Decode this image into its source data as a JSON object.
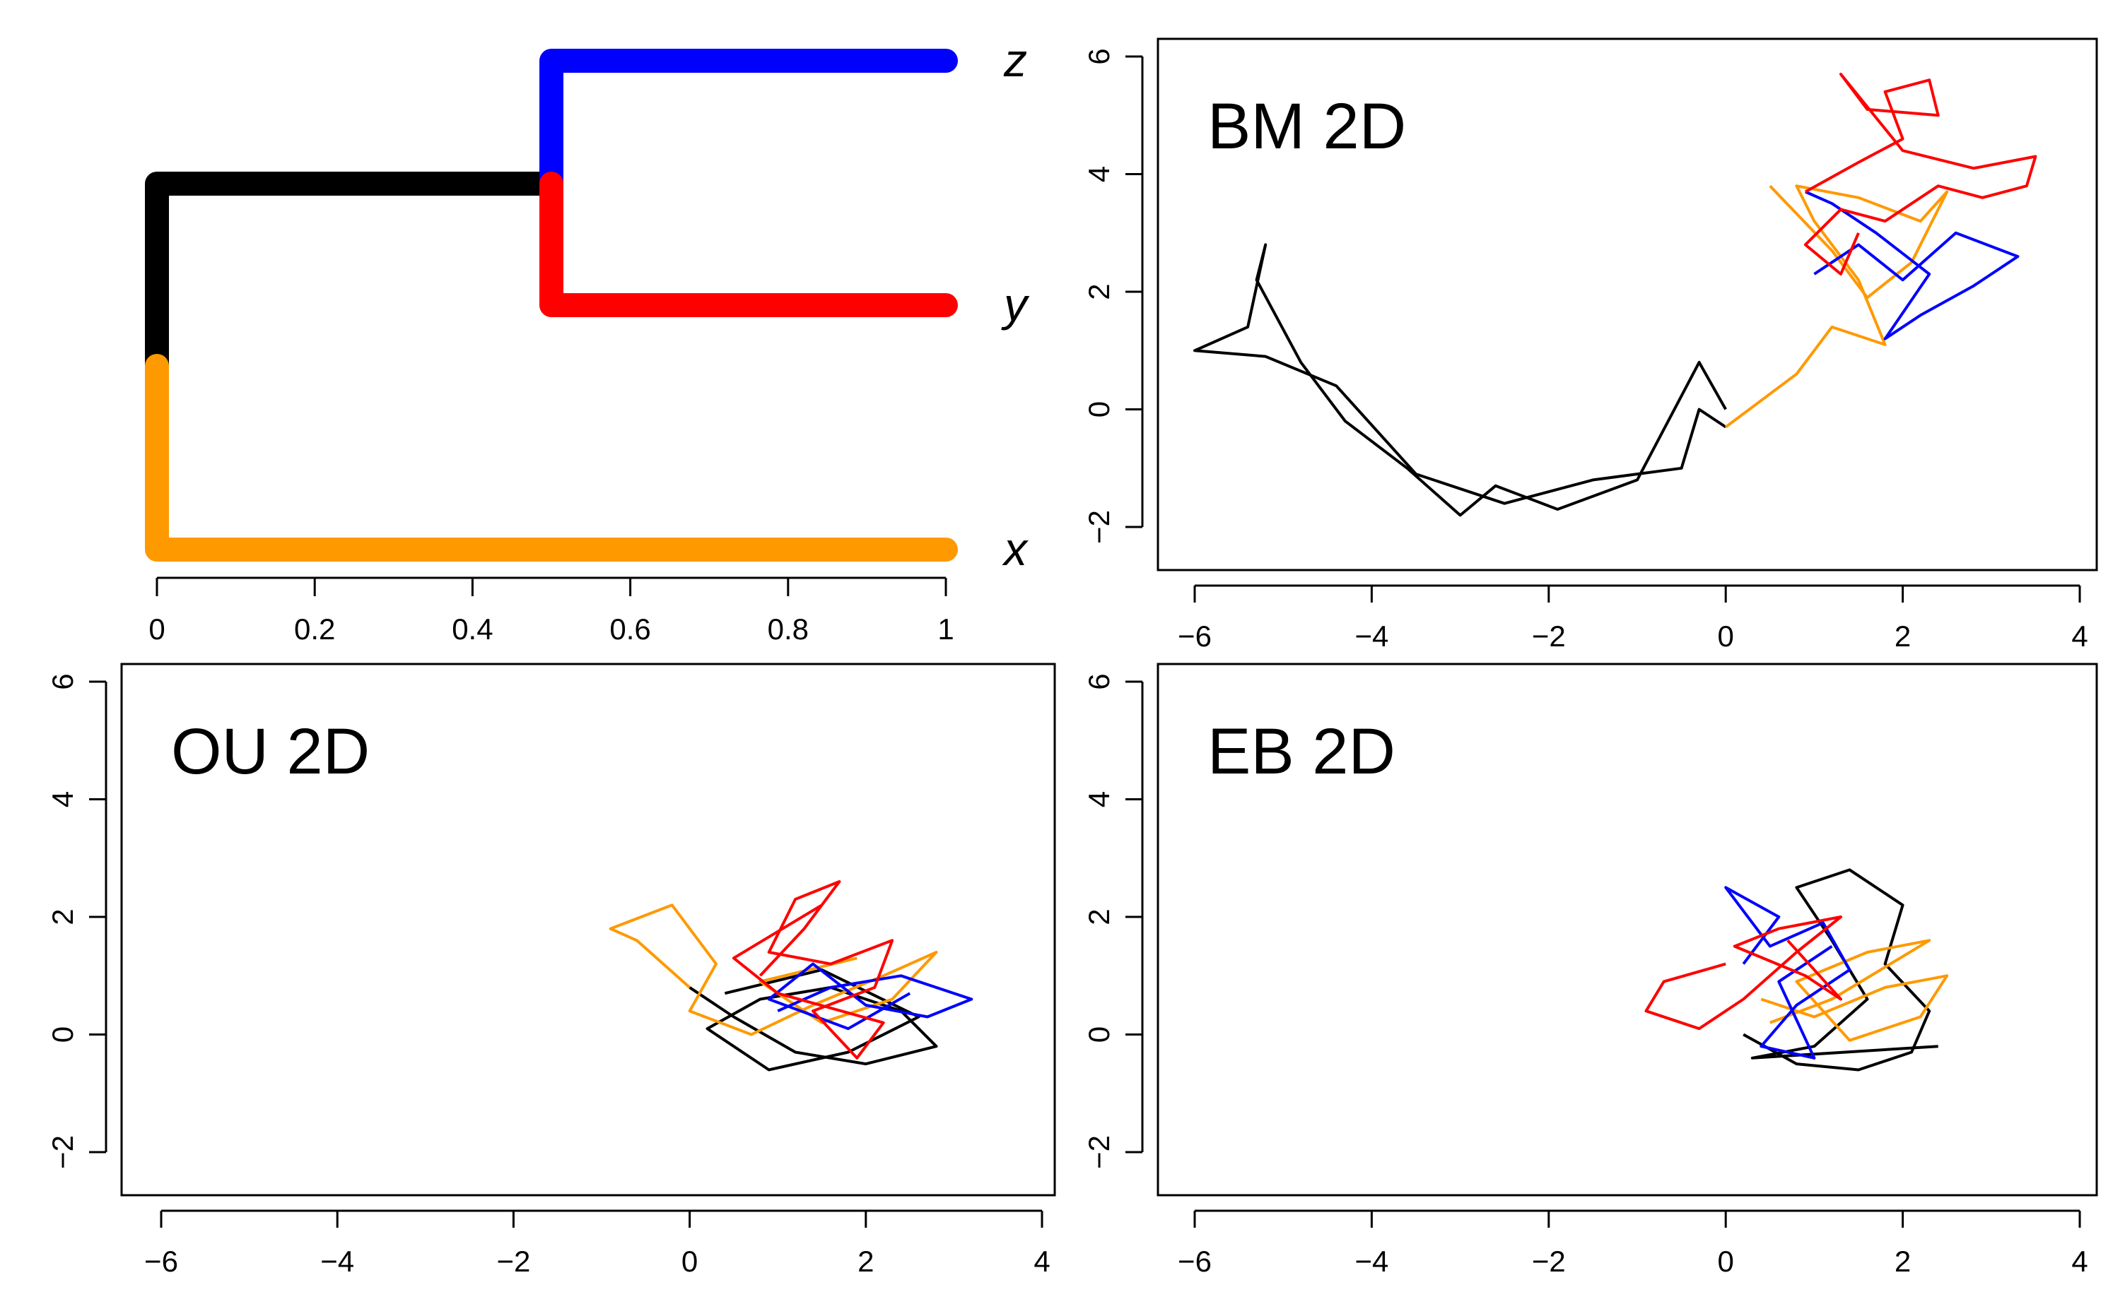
{
  "figure": {
    "panels": [
      "tree",
      "BM 2D",
      "OU 2D",
      "EB 2D"
    ]
  },
  "chart_data": [
    {
      "type": "line",
      "panel": "tree",
      "title": "",
      "xlabel": "",
      "ylabel": "",
      "xlim": [
        0,
        1
      ],
      "x_ticks": [
        0,
        0.2,
        0.4,
        0.6,
        0.8,
        1
      ],
      "x_tick_labels": [
        "0",
        "0.2",
        "0.4",
        "0.6",
        "0.8",
        "1"
      ],
      "tips": [
        "z",
        "y",
        "x"
      ],
      "branches": [
        {
          "from": "root",
          "to": "inner",
          "color": "#000000",
          "length": 0.5
        },
        {
          "from": "inner",
          "to": "z",
          "color": "#0000ff",
          "length": 0.5
        },
        {
          "from": "inner",
          "to": "y",
          "color": "#ff0000",
          "length": 0.5
        },
        {
          "from": "root",
          "to": "x",
          "color": "#ff9900",
          "length": 1.0
        }
      ]
    },
    {
      "type": "line",
      "panel": "bm",
      "title": "BM 2D",
      "xlabel": "",
      "ylabel": "",
      "xlim": [
        -6,
        4
      ],
      "ylim": [
        -2,
        6
      ],
      "x_ticks": [
        -6,
        -4,
        -2,
        0,
        2,
        4
      ],
      "y_ticks": [
        -2,
        0,
        2,
        4,
        6
      ],
      "x_tick_labels": [
        "−6",
        "−4",
        "−2",
        "0",
        "2",
        "4"
      ],
      "y_tick_labels": [
        "−2",
        "0",
        "2",
        "4",
        "6"
      ],
      "series": [
        {
          "color": "#000000",
          "points": [
            [
              0,
              0
            ],
            [
              -0.3,
              0.8
            ],
            [
              -1.0,
              -1.2
            ],
            [
              -1.9,
              -1.7
            ],
            [
              -2.6,
              -1.3
            ],
            [
              -3.0,
              -1.8
            ],
            [
              -3.6,
              -1.0
            ],
            [
              -4.3,
              -0.2
            ],
            [
              -4.8,
              0.8
            ],
            [
              -5.3,
              2.2
            ],
            [
              -5.2,
              2.8
            ],
            [
              -5.4,
              1.4
            ],
            [
              -6.0,
              1.0
            ],
            [
              -5.2,
              0.9
            ],
            [
              -4.4,
              0.4
            ],
            [
              -3.5,
              -1.1
            ],
            [
              -2.5,
              -1.6
            ],
            [
              -1.5,
              -1.2
            ],
            [
              -0.5,
              -1.0
            ],
            [
              -0.3,
              0.0
            ],
            [
              0.0,
              -0.3
            ]
          ]
        },
        {
          "color": "#ff9900",
          "points": [
            [
              0,
              -0.3
            ],
            [
              0.8,
              0.6
            ],
            [
              1.2,
              1.4
            ],
            [
              1.8,
              1.1
            ],
            [
              1.5,
              2.2
            ],
            [
              1.0,
              3.2
            ],
            [
              0.8,
              3.8
            ],
            [
              1.5,
              3.6
            ],
            [
              2.2,
              3.2
            ],
            [
              2.5,
              3.7
            ],
            [
              2.1,
              2.5
            ],
            [
              1.6,
              1.9
            ],
            [
              1.2,
              2.7
            ],
            [
              0.5,
              3.8
            ]
          ]
        },
        {
          "color": "#0000ff",
          "points": [
            [
              1.0,
              2.3
            ],
            [
              1.5,
              2.8
            ],
            [
              2.0,
              2.2
            ],
            [
              2.6,
              3.0
            ],
            [
              3.3,
              2.6
            ],
            [
              2.8,
              2.1
            ],
            [
              2.2,
              1.6
            ],
            [
              1.8,
              1.2
            ],
            [
              2.3,
              2.3
            ],
            [
              1.7,
              3.0
            ],
            [
              1.2,
              3.5
            ],
            [
              0.9,
              3.7
            ]
          ]
        },
        {
          "color": "#ff0000",
          "points": [
            [
              0.9,
              3.7
            ],
            [
              1.5,
              4.2
            ],
            [
              2.0,
              4.6
            ],
            [
              1.8,
              5.4
            ],
            [
              2.3,
              5.6
            ],
            [
              2.4,
              5.0
            ],
            [
              1.6,
              5.1
            ],
            [
              1.3,
              5.7
            ],
            [
              2.0,
              4.4
            ],
            [
              2.8,
              4.1
            ],
            [
              3.5,
              4.3
            ],
            [
              3.4,
              3.8
            ],
            [
              2.9,
              3.6
            ],
            [
              2.4,
              3.8
            ],
            [
              1.8,
              3.2
            ],
            [
              1.3,
              3.4
            ],
            [
              0.9,
              2.8
            ],
            [
              1.3,
              2.3
            ],
            [
              1.5,
              3.0
            ]
          ]
        }
      ]
    },
    {
      "type": "line",
      "panel": "ou",
      "title": "OU 2D",
      "xlabel": "",
      "ylabel": "",
      "xlim": [
        -6,
        4
      ],
      "ylim": [
        -2,
        6
      ],
      "x_ticks": [
        -6,
        -4,
        -2,
        0,
        2,
        4
      ],
      "y_ticks": [
        -2,
        0,
        2,
        4,
        6
      ],
      "x_tick_labels": [
        "−6",
        "−4",
        "−2",
        "0",
        "2",
        "4"
      ],
      "y_tick_labels": [
        "−2",
        "0",
        "2",
        "4",
        "6"
      ],
      "series": [
        {
          "color": "#000000",
          "points": [
            [
              0,
              0.8
            ],
            [
              0.5,
              0.3
            ],
            [
              1.2,
              -0.3
            ],
            [
              2.0,
              -0.5
            ],
            [
              2.8,
              -0.2
            ],
            [
              2.4,
              0.4
            ],
            [
              1.6,
              0.8
            ],
            [
              0.8,
              0.6
            ],
            [
              0.2,
              0.1
            ],
            [
              0.9,
              -0.6
            ],
            [
              1.8,
              -0.3
            ],
            [
              2.6,
              0.3
            ],
            [
              1.5,
              1.1
            ],
            [
              0.4,
              0.7
            ]
          ]
        },
        {
          "color": "#ff9900",
          "points": [
            [
              0,
              0.8
            ],
            [
              -0.6,
              1.6
            ],
            [
              -0.9,
              1.8
            ],
            [
              -0.2,
              2.2
            ],
            [
              0.3,
              1.2
            ],
            [
              0.0,
              0.4
            ],
            [
              0.7,
              0.0
            ],
            [
              1.4,
              0.5
            ],
            [
              2.2,
              1.0
            ],
            [
              2.8,
              1.4
            ],
            [
              2.3,
              0.6
            ],
            [
              1.5,
              0.2
            ],
            [
              0.8,
              0.9
            ],
            [
              1.9,
              1.3
            ]
          ]
        },
        {
          "color": "#0000ff",
          "points": [
            [
              1.0,
              0.4
            ],
            [
              1.6,
              0.8
            ],
            [
              2.4,
              1.0
            ],
            [
              3.2,
              0.6
            ],
            [
              2.7,
              0.3
            ],
            [
              2.0,
              0.5
            ],
            [
              1.4,
              1.2
            ],
            [
              0.9,
              0.6
            ],
            [
              1.8,
              0.1
            ],
            [
              2.5,
              0.7
            ]
          ]
        },
        {
          "color": "#ff0000",
          "points": [
            [
              0.8,
              1.0
            ],
            [
              1.3,
              1.8
            ],
            [
              1.7,
              2.6
            ],
            [
              1.2,
              2.3
            ],
            [
              0.9,
              1.4
            ],
            [
              1.6,
              1.2
            ],
            [
              2.3,
              1.6
            ],
            [
              2.1,
              0.8
            ],
            [
              1.4,
              0.4
            ],
            [
              1.9,
              -0.4
            ],
            [
              2.2,
              0.2
            ],
            [
              1.0,
              0.7
            ],
            [
              0.5,
              1.3
            ],
            [
              1.5,
              2.2
            ]
          ]
        }
      ]
    },
    {
      "type": "line",
      "panel": "eb",
      "title": "EB 2D",
      "xlabel": "",
      "ylabel": "",
      "xlim": [
        -6,
        4
      ],
      "ylim": [
        -2,
        6
      ],
      "x_ticks": [
        -6,
        -4,
        -2,
        0,
        2,
        4
      ],
      "y_ticks": [
        -2,
        0,
        2,
        4,
        6
      ],
      "x_tick_labels": [
        "−6",
        "−4",
        "−2",
        "0",
        "2",
        "4"
      ],
      "y_tick_labels": [
        "−2",
        "0",
        "2",
        "4",
        "6"
      ],
      "series": [
        {
          "color": "#000000",
          "points": [
            [
              0.2,
              0
            ],
            [
              0.8,
              -0.5
            ],
            [
              1.5,
              -0.6
            ],
            [
              2.1,
              -0.3
            ],
            [
              2.3,
              0.4
            ],
            [
              1.8,
              1.2
            ],
            [
              2.0,
              2.2
            ],
            [
              1.4,
              2.8
            ],
            [
              0.8,
              2.5
            ],
            [
              1.2,
              1.6
            ],
            [
              1.6,
              0.6
            ],
            [
              1.0,
              -0.2
            ],
            [
              0.3,
              -0.4
            ],
            [
              2.4,
              -0.2
            ]
          ]
        },
        {
          "color": "#ff9900",
          "points": [
            [
              0.4,
              0.6
            ],
            [
              1.0,
              0.3
            ],
            [
              1.8,
              0.8
            ],
            [
              2.5,
              1.0
            ],
            [
              2.2,
              0.3
            ],
            [
              1.4,
              -0.1
            ],
            [
              0.8,
              0.9
            ],
            [
              1.6,
              1.4
            ],
            [
              2.3,
              1.6
            ],
            [
              1.2,
              0.6
            ],
            [
              0.5,
              0.2
            ]
          ]
        },
        {
          "color": "#0000ff",
          "points": [
            [
              0.2,
              1.2
            ],
            [
              0.6,
              2.0
            ],
            [
              0.0,
              2.5
            ],
            [
              0.5,
              1.5
            ],
            [
              1.1,
              1.9
            ],
            [
              1.4,
              1.1
            ],
            [
              0.8,
              0.5
            ],
            [
              0.4,
              -0.2
            ],
            [
              1.0,
              -0.4
            ],
            [
              0.6,
              0.9
            ],
            [
              1.2,
              1.5
            ]
          ]
        },
        {
          "color": "#ff0000",
          "points": [
            [
              0.0,
              1.2
            ],
            [
              -0.7,
              0.9
            ],
            [
              -0.9,
              0.4
            ],
            [
              -0.3,
              0.1
            ],
            [
              0.2,
              0.6
            ],
            [
              0.8,
              1.4
            ],
            [
              1.3,
              2.0
            ],
            [
              0.6,
              1.8
            ],
            [
              0.1,
              1.5
            ],
            [
              0.9,
              1.0
            ],
            [
              1.3,
              0.6
            ],
            [
              0.7,
              1.6
            ]
          ]
        }
      ]
    }
  ]
}
